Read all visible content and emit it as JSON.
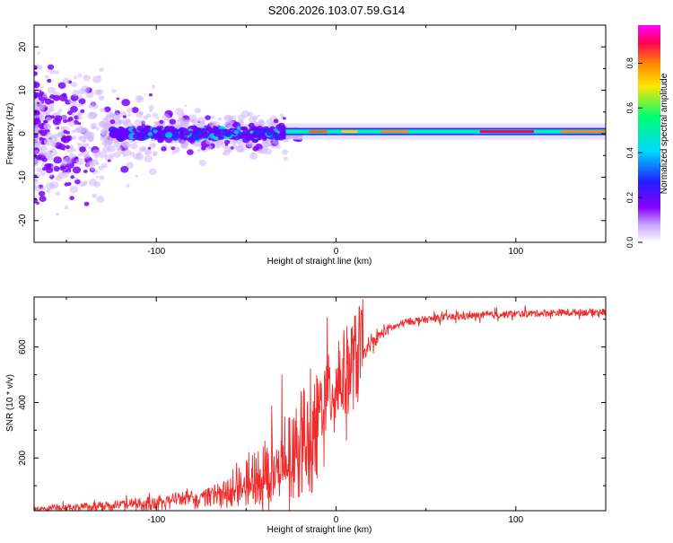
{
  "title": "S206.2026.103.07.59.G14",
  "colors": {
    "snr_line": "#ef2b2b",
    "frame": "#000000",
    "spectrogram_ramp": [
      "#ffffff",
      "#8800ff",
      "#1f2bff",
      "#00d8ff",
      "#00ff70",
      "#ffe600",
      "#ff8800",
      "#ff0055",
      "#ff00ff"
    ]
  },
  "chart_data": [
    {
      "type": "heatmap",
      "name": "spectrogram",
      "xlabel": "Height of straight line (km)",
      "ylabel": "Frequency (Hz)",
      "xlim": [
        -168,
        150
      ],
      "ylim": [
        -25,
        25
      ],
      "xticks": [
        -100,
        0,
        100
      ],
      "yticks": [
        -20,
        -10,
        0,
        10,
        20
      ],
      "yticks_minor": [
        -15,
        -5,
        5,
        15
      ],
      "colorbar": {
        "label": "Normalized spectral amplitude",
        "range": [
          0,
          0.97
        ],
        "ticks": [
          "0.0",
          "0.2",
          "0.4",
          "0.6",
          "0.8"
        ],
        "tick_values": [
          0,
          0.2,
          0.4,
          0.6,
          0.8
        ]
      },
      "description_points": {
        "scattered_region_x": [
          -168,
          -30
        ],
        "coherent_band_x": [
          -28,
          150
        ],
        "coherent_band_frequency": 0.5
      }
    },
    {
      "type": "line",
      "name": "snr",
      "xlabel": "Height of straight line (km)",
      "ylabel": "SNR (10 * v/v)",
      "xlim": [
        -168,
        150
      ],
      "ylim": [
        10,
        780
      ],
      "xticks": [
        -100,
        0,
        100
      ],
      "yticks": [
        200,
        400,
        600
      ],
      "series": [
        {
          "name": "SNR",
          "x": [
            -168,
            -150,
            -130,
            -110,
            -90,
            -70,
            -55,
            -45,
            -35,
            -25,
            -20,
            -15,
            -10,
            -5,
            0,
            5,
            10,
            15,
            20,
            25,
            30,
            40,
            60,
            80,
            100,
            120,
            150
          ],
          "values": [
            22,
            25,
            32,
            42,
            58,
            80,
            105,
            140,
            190,
            250,
            290,
            330,
            370,
            410,
            450,
            490,
            530,
            570,
            610,
            645,
            665,
            690,
            705,
            712,
            718,
            722,
            725
          ]
        }
      ]
    }
  ]
}
